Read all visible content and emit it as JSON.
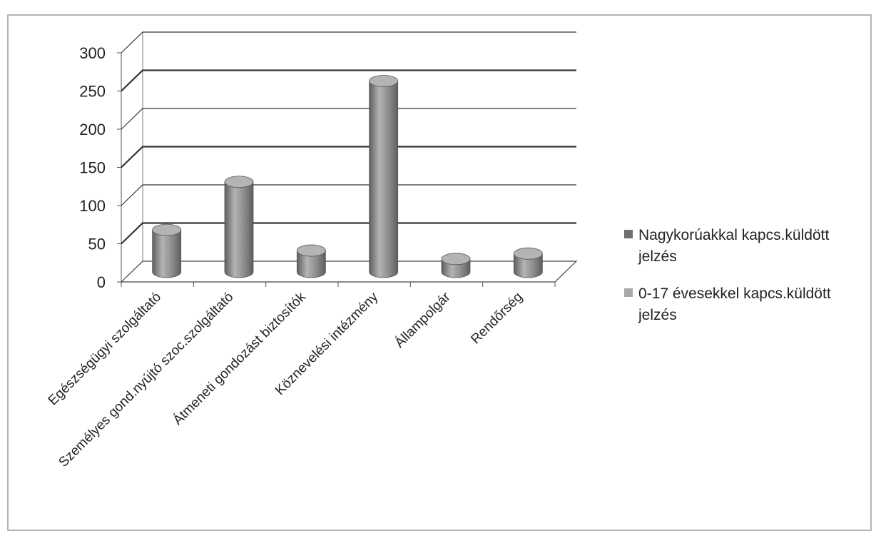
{
  "chart_data": {
    "type": "bar",
    "title": "",
    "xlabel": "",
    "ylabel": "",
    "categories": [
      "Egészségügyi szolgáltató",
      "Személyes gond.nyújtó szoc.szolgáltató",
      "Átmeneti gondozást biztosítók",
      "Köznevelési intézmény",
      "Állampolgár",
      "Rendőrség"
    ],
    "series": [
      {
        "name": "Nagykorúakkal kapcs.küldött jelzés",
        "values": [
          0,
          0,
          0,
          0,
          0,
          0
        ]
      },
      {
        "name": "0-17 évesekkel kapcs.küldött jelzés",
        "values": [
          55,
          118,
          28,
          250,
          17,
          24
        ]
      }
    ],
    "ylim": [
      0,
      300
    ],
    "yticks": [
      "0",
      "50",
      "100",
      "150",
      "200",
      "250",
      "300"
    ],
    "grid": true,
    "legend_position": "right",
    "colors": {
      "bar": "#8a8a8a",
      "bar_dark": "#5e5e5e",
      "bar_light": "#b4b4b4",
      "legend_series1": "#707070",
      "legend_series2": "#a8a8a8",
      "grid": "#333333"
    }
  }
}
